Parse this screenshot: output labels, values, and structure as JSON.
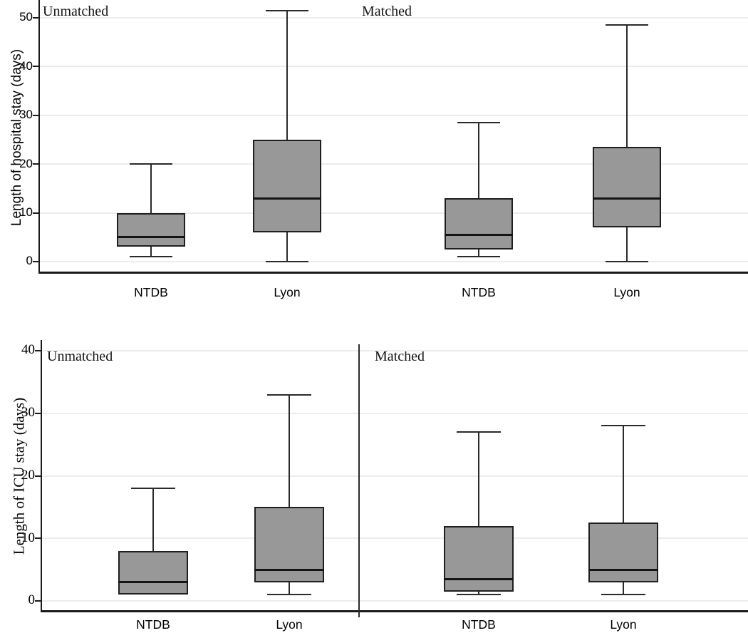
{
  "figure": {
    "description": "Box plots comparing NTDB and Lyon cohorts, unmatched and matched",
    "panel_labels": [
      "Unmatched",
      "Matched"
    ],
    "group_labels": [
      "NTDB",
      "Lyon"
    ]
  },
  "colors": {
    "background": "#ffffff",
    "box_fill": "#989898",
    "box_border": "#1f1f1f",
    "median": "#141414",
    "whisker": "#2a2a2a",
    "axis": "#1a1a1a",
    "gridline": "#ececec",
    "divider": "#2a2a2a",
    "text": "#000000"
  },
  "chart_data": [
    {
      "type": "boxplot",
      "title": "",
      "ylabel": "Length of hospital stay (days)",
      "xlabel": "",
      "ylim": [
        0,
        52
      ],
      "yticks": [
        0,
        10,
        20,
        30,
        40,
        50
      ],
      "grid": "horizontal",
      "panels": [
        {
          "label": "Unmatched",
          "boxes": [
            {
              "category": "NTDB",
              "whisker_low": 1,
              "q1": 3,
              "median": 5,
              "q3": 10,
              "whisker_high": 20
            },
            {
              "category": "Lyon",
              "whisker_low": 0,
              "q1": 6,
              "median": 13,
              "q3": 25,
              "whisker_high": 51.5
            }
          ]
        },
        {
          "label": "Matched",
          "boxes": [
            {
              "category": "NTDB",
              "whisker_low": 1,
              "q1": 2.5,
              "median": 5.5,
              "q3": 13,
              "whisker_high": 28.5
            },
            {
              "category": "Lyon",
              "whisker_low": 0,
              "q1": 7,
              "median": 13,
              "q3": 23.5,
              "whisker_high": 48.5
            }
          ]
        }
      ]
    },
    {
      "type": "boxplot",
      "title": "",
      "ylabel": "Length of ICU stay (days)",
      "xlabel": "",
      "ylim": [
        0,
        41
      ],
      "yticks": [
        0,
        10,
        20,
        30,
        40
      ],
      "grid": "horizontal",
      "panels": [
        {
          "label": "Unmatched",
          "boxes": [
            {
              "category": "NTDB",
              "whisker_low": 1,
              "q1": 1,
              "median": 3,
              "q3": 8,
              "whisker_high": 18
            },
            {
              "category": "Lyon",
              "whisker_low": 1,
              "q1": 3,
              "median": 5,
              "q3": 15,
              "whisker_high": 33
            }
          ]
        },
        {
          "label": "Matched",
          "boxes": [
            {
              "category": "NTDB",
              "whisker_low": 1,
              "q1": 1.5,
              "median": 3.5,
              "q3": 12,
              "whisker_high": 27
            },
            {
              "category": "Lyon",
              "whisker_low": 1,
              "q1": 3,
              "median": 5,
              "q3": 12.5,
              "whisker_high": 28
            }
          ]
        }
      ]
    }
  ]
}
